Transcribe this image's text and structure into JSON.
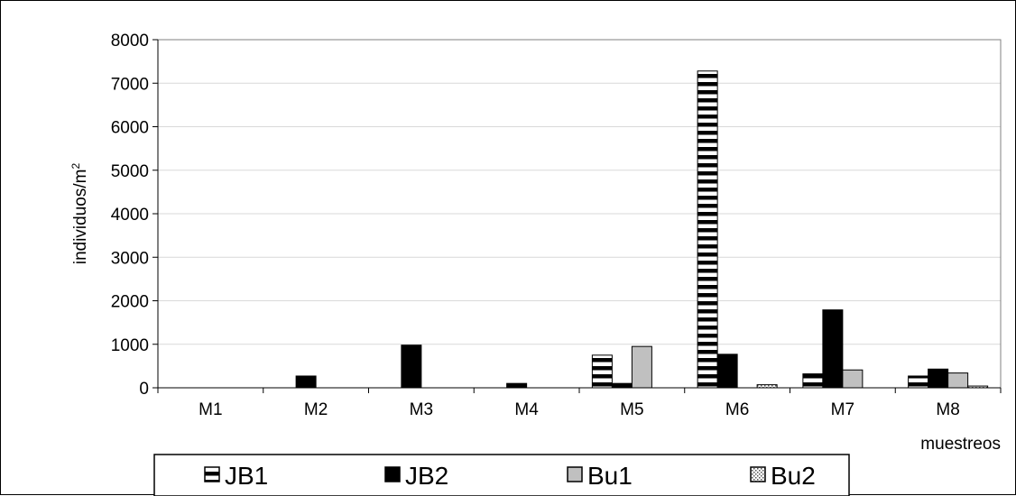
{
  "chart_data": {
    "type": "bar",
    "categories": [
      "M1",
      "M2",
      "M3",
      "M4",
      "M5",
      "M6",
      "M7",
      "M8"
    ],
    "series": [
      {
        "name": "JB1",
        "values": [
          0,
          0,
          0,
          0,
          750,
          7280,
          320,
          270
        ],
        "pattern": "hstripes"
      },
      {
        "name": "JB2",
        "values": [
          0,
          270,
          980,
          100,
          100,
          770,
          1790,
          430
        ],
        "pattern": "solid-black"
      },
      {
        "name": "Bu1",
        "values": [
          0,
          0,
          0,
          0,
          950,
          0,
          410,
          340
        ],
        "pattern": "solid-gray"
      },
      {
        "name": "Bu2",
        "values": [
          0,
          0,
          0,
          0,
          0,
          70,
          0,
          40
        ],
        "pattern": "dotted"
      }
    ],
    "ylabel": "individuos/m",
    "ylabel_sup": "2",
    "xlabel": "muestreos",
    "ylim": [
      0,
      8000
    ],
    "yticks": [
      0,
      1000,
      2000,
      3000,
      4000,
      5000,
      6000,
      7000,
      8000
    ],
    "grid": "horizontal",
    "legend_position": "bottom",
    "colors": {
      "bar_black": "#000000",
      "bar_gray": "#c0c0c0",
      "grid": "#d9d9d9"
    }
  }
}
